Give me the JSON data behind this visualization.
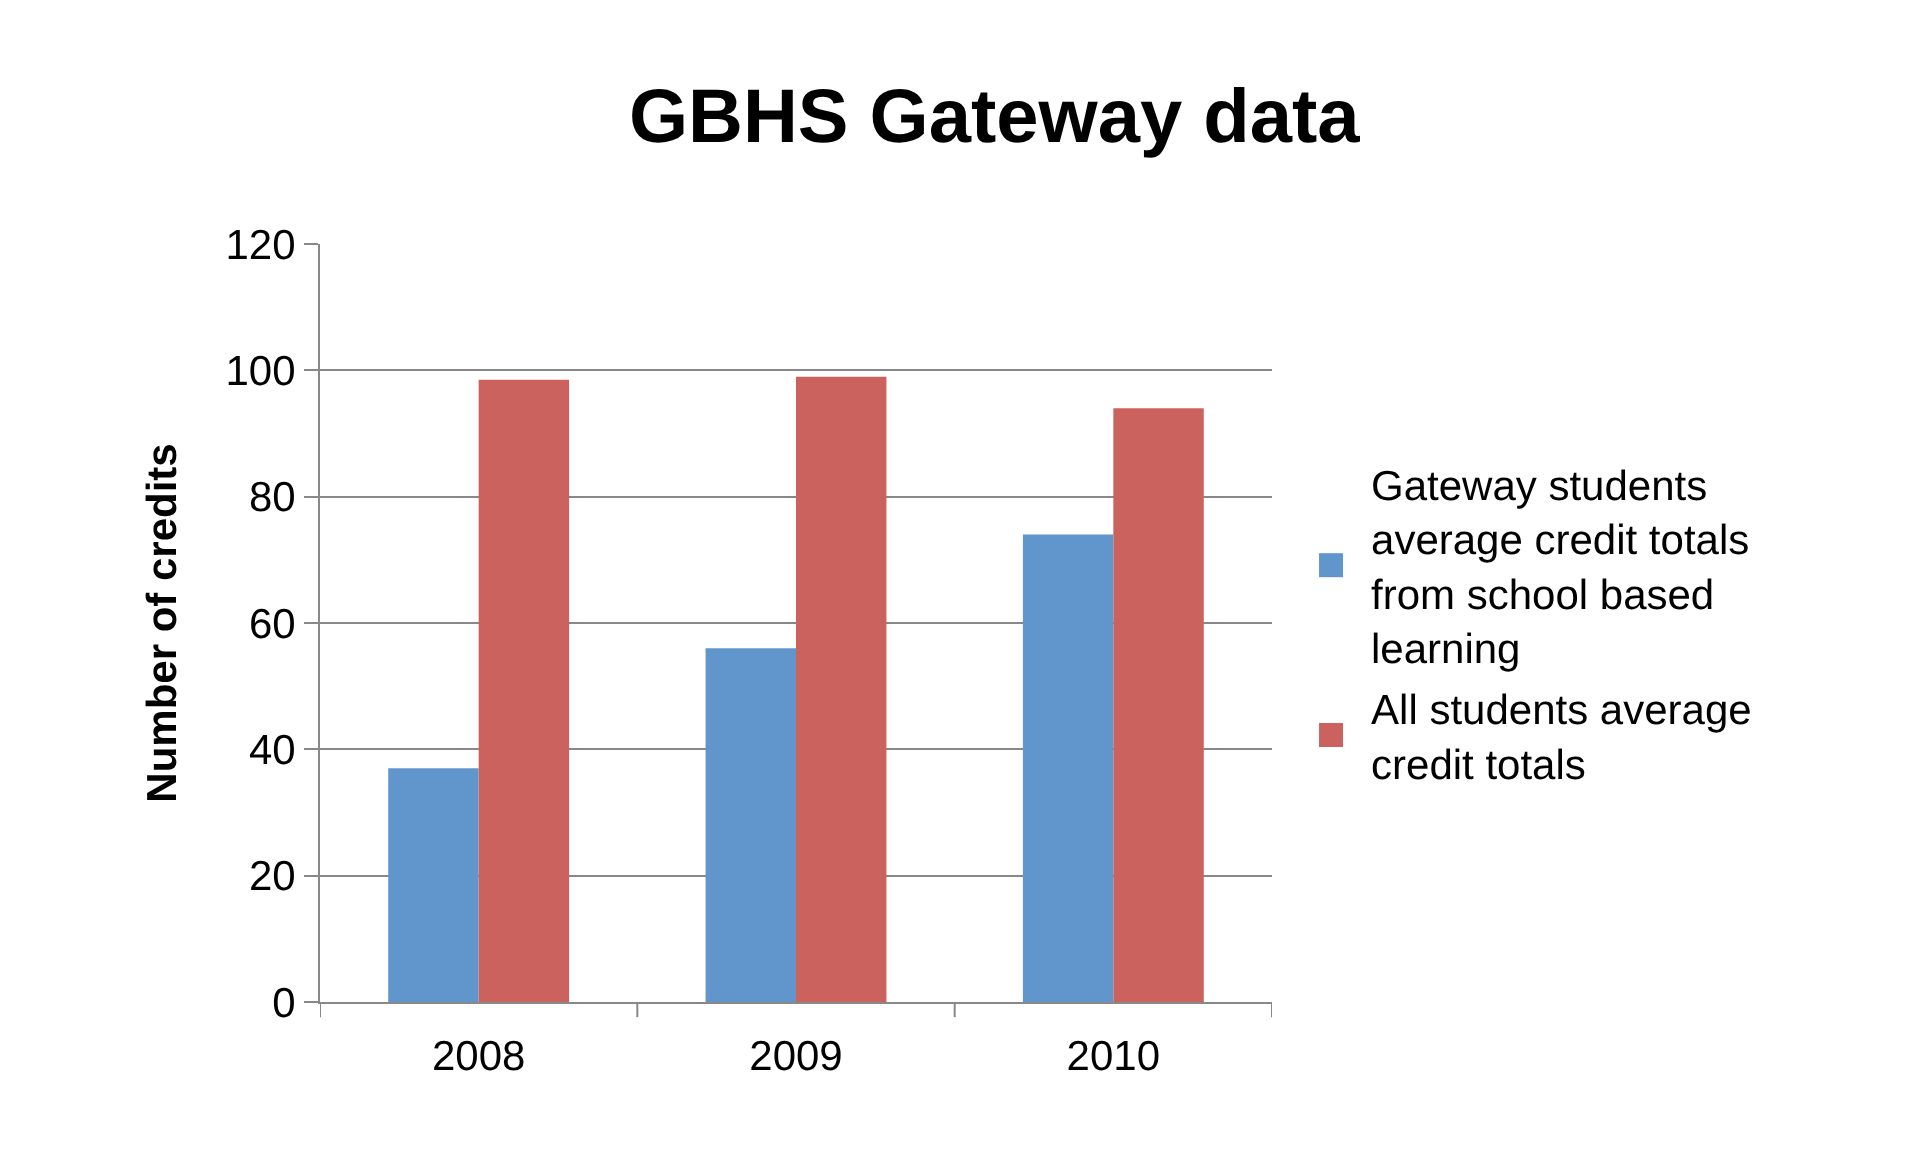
{
  "chart_data": {
    "type": "bar",
    "title": "GBHS Gateway data",
    "ylabel": "Number of credits",
    "categories": [
      "2008",
      "2009",
      "2010"
    ],
    "series": [
      {
        "name": "Gateway students average credit totals from school based learning",
        "color": "#6096cc",
        "values": [
          37,
          56,
          74
        ]
      },
      {
        "name": "All students average credit totals",
        "color": "#cc625e",
        "values": [
          98.5,
          99,
          94
        ]
      }
    ],
    "ylim": [
      0,
      120
    ],
    "yticks": [
      0,
      20,
      40,
      60,
      80,
      100,
      120
    ],
    "grid": "y",
    "legend": "right"
  }
}
